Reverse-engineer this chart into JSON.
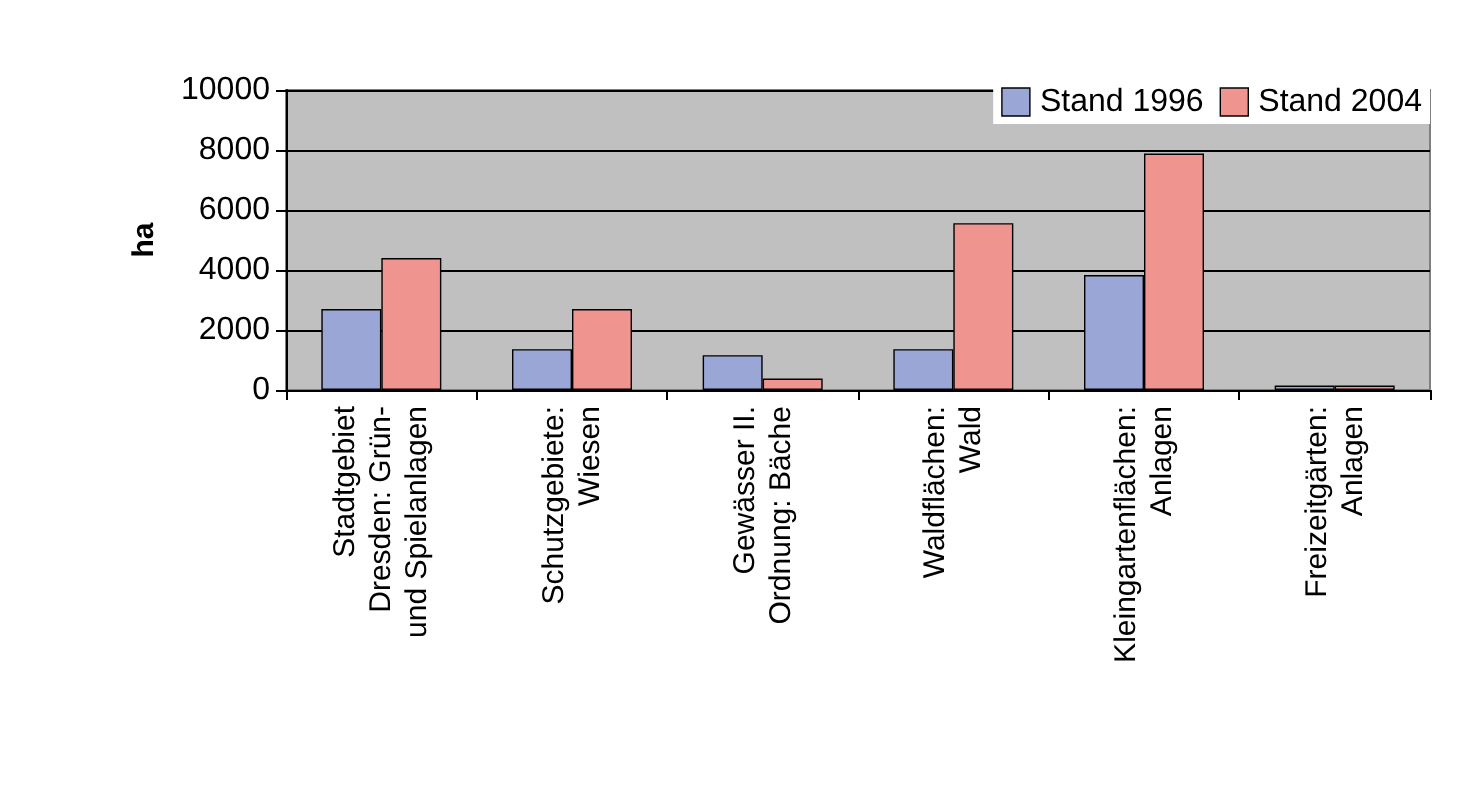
{
  "chart_data": {
    "type": "bar",
    "ylabel": "ha",
    "categories": [
      "Stadtgebiet\nDresden: Grün-\nund Spielanlagen",
      "Schutzgebiete:\nWiesen",
      "Gewässer II.\nOrdnung: Bäche",
      "Waldflächen:\nWald",
      "Kleingartenflächen:\nAnlagen",
      "Freizeitgärten:\nAnlagen"
    ],
    "series": [
      {
        "name": "Stand 1996",
        "color": "#9aa6d6",
        "values": [
          2700,
          1360,
          1160,
          1360,
          3830,
          150
        ]
      },
      {
        "name": "Stand 2004",
        "color": "#f09490",
        "values": [
          4400,
          2700,
          380,
          5560,
          7880,
          150
        ]
      }
    ],
    "ylim": [
      0,
      10000
    ],
    "yticks": [
      0,
      2000,
      4000,
      6000,
      8000,
      10000
    ],
    "grid": "y",
    "legend": "top right"
  }
}
